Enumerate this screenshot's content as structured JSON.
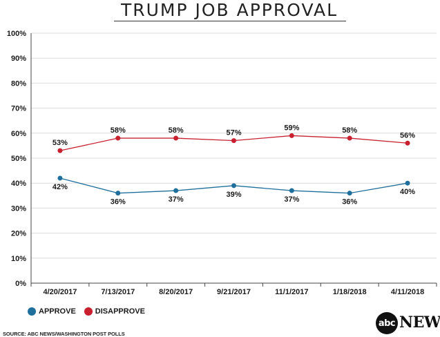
{
  "chart_data": {
    "type": "line",
    "title": "TRUMP JOB APPROVAL",
    "categories": [
      "4/20/2017",
      "7/13/2017",
      "8/20/2017",
      "9/21/2017",
      "11/1/2017",
      "1/18/2018",
      "4/11/2018"
    ],
    "series": [
      {
        "name": "APPROVE",
        "color": "#1f6f9c",
        "values": [
          42,
          36,
          37,
          39,
          37,
          36,
          40
        ]
      },
      {
        "name": "DISAPPROVE",
        "color": "#c8202f",
        "values": [
          53,
          58,
          58,
          57,
          59,
          58,
          56
        ]
      }
    ],
    "yticks": [
      "0%",
      "10%",
      "20%",
      "30%",
      "40%",
      "50%",
      "60%",
      "70%",
      "80%",
      "90%",
      "100%"
    ],
    "ylim": [
      0,
      100
    ],
    "grid": true,
    "legend": "bottom-left"
  },
  "source": "SOURCE: ABC NEWS/WASHINGTON POST POLLS",
  "brand": {
    "mark": "abc",
    "name": "NEWS"
  }
}
